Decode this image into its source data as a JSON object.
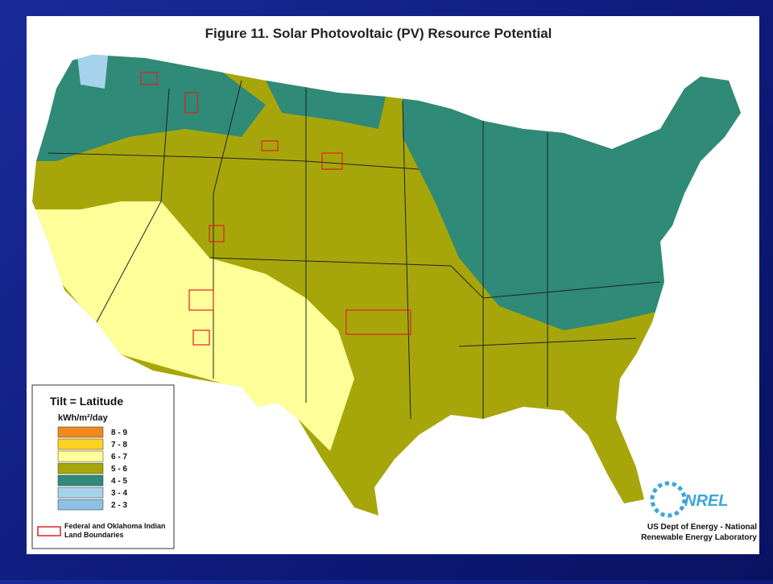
{
  "title": "Figure 11.  Solar Photovoltaic (PV) Resource Potential",
  "legend": {
    "title": "Tilt = Latitude",
    "units": "kWh/m²/day",
    "items": [
      {
        "label": "8 - 9",
        "color": "#f08a1c"
      },
      {
        "label": "7 - 8",
        "color": "#ffd21f"
      },
      {
        "label": "6 - 7",
        "color": "#ffff99"
      },
      {
        "label": "5 - 6",
        "color": "#a6a60a"
      },
      {
        "label": "4 - 5",
        "color": "#2f8a78"
      },
      {
        "label": "3 - 4",
        "color": "#a6d2ec"
      },
      {
        "label": "2 - 3",
        "color": "#8cc0e4"
      }
    ],
    "boundary": "Federal and Oklahoma Indian Land Boundaries"
  },
  "logo": "NREL",
  "credit": "US Dept of Energy - National Renewable Energy Laboratory"
}
